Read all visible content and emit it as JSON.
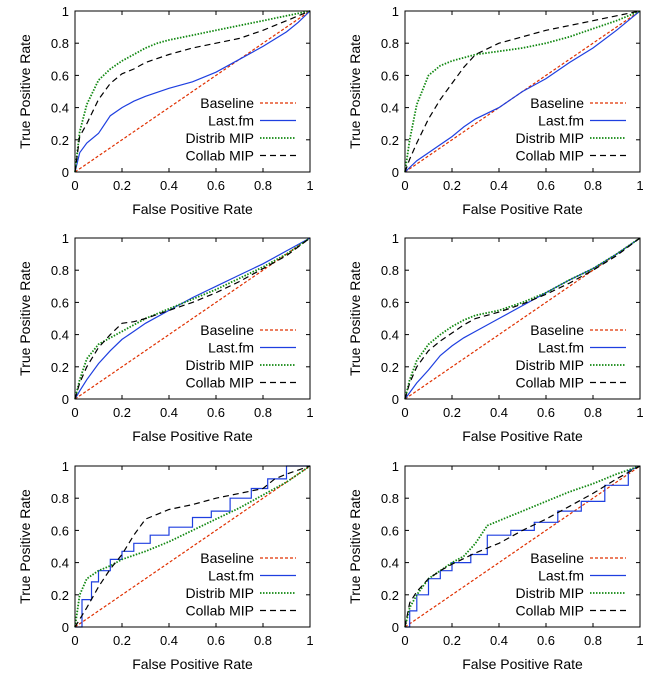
{
  "figure": {
    "colors": {
      "Baseline": "#e03000",
      "Last.fm": "#1e3fe0",
      "Distrib MIP": "#118811",
      "Collab MIP": "#000000"
    },
    "dashes": {
      "Baseline": "3,2",
      "Last.fm": "",
      "Distrib MIP": "1.5,1.5",
      "Collab MIP": "6,4"
    }
  },
  "chart_data": [
    {
      "type": "line",
      "xlabel": "False Positive Rate",
      "ylabel": "True Positive Rate",
      "xlim": [
        0,
        1
      ],
      "ylim": [
        0,
        1
      ],
      "xticks": [
        "0",
        "0.2",
        "0.4",
        "0.6",
        "0.8",
        "1"
      ],
      "yticks": [
        "0",
        "0.2",
        "0.4",
        "0.6",
        "0.8",
        "1"
      ],
      "legend": "bottom-right",
      "grid": false,
      "series": [
        {
          "name": "Baseline",
          "x": [
            0,
            1
          ],
          "y": [
            0,
            1
          ]
        },
        {
          "name": "Last.fm",
          "x": [
            0,
            0.02,
            0.05,
            0.1,
            0.15,
            0.2,
            0.25,
            0.3,
            0.4,
            0.5,
            0.6,
            0.7,
            0.8,
            0.9,
            0.95,
            1
          ],
          "y": [
            0,
            0.12,
            0.18,
            0.24,
            0.35,
            0.4,
            0.44,
            0.47,
            0.52,
            0.56,
            0.62,
            0.7,
            0.78,
            0.87,
            0.93,
            1
          ]
        },
        {
          "name": "Distrib MIP",
          "x": [
            0,
            0.02,
            0.05,
            0.1,
            0.15,
            0.2,
            0.25,
            0.3,
            0.35,
            0.4,
            0.5,
            0.6,
            0.7,
            0.8,
            0.9,
            1
          ],
          "y": [
            0,
            0.25,
            0.42,
            0.57,
            0.64,
            0.69,
            0.73,
            0.77,
            0.8,
            0.82,
            0.85,
            0.88,
            0.91,
            0.94,
            0.97,
            1
          ]
        },
        {
          "name": "Collab MIP",
          "x": [
            0,
            0.02,
            0.05,
            0.1,
            0.15,
            0.2,
            0.25,
            0.3,
            0.4,
            0.5,
            0.6,
            0.7,
            0.8,
            0.9,
            1
          ],
          "y": [
            0,
            0.22,
            0.3,
            0.45,
            0.55,
            0.61,
            0.64,
            0.68,
            0.73,
            0.77,
            0.8,
            0.83,
            0.88,
            0.94,
            1
          ]
        }
      ]
    },
    {
      "type": "line",
      "xlabel": "False Positive Rate",
      "ylabel": "True Positive Rate",
      "xlim": [
        0,
        1
      ],
      "ylim": [
        0,
        1
      ],
      "xticks": [
        "0",
        "0.2",
        "0.4",
        "0.6",
        "0.8",
        "1"
      ],
      "yticks": [
        "0",
        "0.2",
        "0.4",
        "0.6",
        "0.8",
        "1"
      ],
      "legend": "bottom-right",
      "grid": false,
      "series": [
        {
          "name": "Baseline",
          "x": [
            0,
            1
          ],
          "y": [
            0,
            1
          ]
        },
        {
          "name": "Last.fm",
          "x": [
            0,
            0.05,
            0.1,
            0.15,
            0.2,
            0.25,
            0.3,
            0.4,
            0.5,
            0.6,
            0.7,
            0.8,
            0.9,
            1
          ],
          "y": [
            0,
            0.07,
            0.12,
            0.17,
            0.22,
            0.28,
            0.33,
            0.4,
            0.5,
            0.58,
            0.68,
            0.77,
            0.88,
            1
          ]
        },
        {
          "name": "Distrib MIP",
          "x": [
            0,
            0.02,
            0.05,
            0.1,
            0.15,
            0.2,
            0.25,
            0.3,
            0.4,
            0.5,
            0.6,
            0.7,
            0.8,
            0.9,
            1
          ],
          "y": [
            0,
            0.2,
            0.42,
            0.6,
            0.66,
            0.69,
            0.71,
            0.73,
            0.75,
            0.77,
            0.8,
            0.84,
            0.89,
            0.94,
            1
          ]
        },
        {
          "name": "Collab MIP",
          "x": [
            0,
            0.02,
            0.05,
            0.1,
            0.15,
            0.2,
            0.25,
            0.3,
            0.4,
            0.5,
            0.6,
            0.7,
            0.8,
            0.9,
            1
          ],
          "y": [
            0,
            0.08,
            0.18,
            0.33,
            0.45,
            0.55,
            0.65,
            0.73,
            0.8,
            0.84,
            0.88,
            0.91,
            0.94,
            0.97,
            1
          ]
        }
      ]
    },
    {
      "type": "line",
      "xlabel": "False Positive Rate",
      "ylabel": "True Positive Rate",
      "xlim": [
        0,
        1
      ],
      "ylim": [
        0,
        1
      ],
      "xticks": [
        "0",
        "0.2",
        "0.4",
        "0.6",
        "0.8",
        "1"
      ],
      "yticks": [
        "0",
        "0.2",
        "0.4",
        "0.6",
        "0.8",
        "1"
      ],
      "legend": "bottom-right",
      "grid": false,
      "series": [
        {
          "name": "Baseline",
          "x": [
            0,
            1
          ],
          "y": [
            0,
            1
          ]
        },
        {
          "name": "Last.fm",
          "x": [
            0,
            0.02,
            0.05,
            0.1,
            0.15,
            0.2,
            0.25,
            0.3,
            0.4,
            0.5,
            0.6,
            0.7,
            0.8,
            0.9,
            1
          ],
          "y": [
            0,
            0.05,
            0.12,
            0.22,
            0.3,
            0.37,
            0.42,
            0.47,
            0.55,
            0.63,
            0.7,
            0.77,
            0.84,
            0.92,
            1
          ]
        },
        {
          "name": "Distrib MIP",
          "x": [
            0,
            0.02,
            0.05,
            0.1,
            0.15,
            0.2,
            0.25,
            0.3,
            0.4,
            0.5,
            0.6,
            0.7,
            0.8,
            0.9,
            1
          ],
          "y": [
            0,
            0.12,
            0.25,
            0.34,
            0.38,
            0.42,
            0.46,
            0.5,
            0.56,
            0.62,
            0.68,
            0.75,
            0.82,
            0.9,
            1
          ]
        },
        {
          "name": "Collab MIP",
          "x": [
            0,
            0.02,
            0.05,
            0.1,
            0.15,
            0.2,
            0.25,
            0.3,
            0.4,
            0.5,
            0.6,
            0.7,
            0.8,
            0.9,
            1
          ],
          "y": [
            0,
            0.1,
            0.2,
            0.32,
            0.4,
            0.47,
            0.48,
            0.5,
            0.55,
            0.6,
            0.66,
            0.73,
            0.81,
            0.89,
            1
          ]
        }
      ]
    },
    {
      "type": "line",
      "xlabel": "False Positive Rate",
      "ylabel": "True Positive Rate",
      "xlim": [
        0,
        1
      ],
      "ylim": [
        0,
        1
      ],
      "xticks": [
        "0",
        "0.2",
        "0.4",
        "0.6",
        "0.8",
        "1"
      ],
      "yticks": [
        "0",
        "0.2",
        "0.4",
        "0.6",
        "0.8",
        "1"
      ],
      "legend": "bottom-right",
      "grid": false,
      "series": [
        {
          "name": "Baseline",
          "x": [
            0,
            1
          ],
          "y": [
            0,
            1
          ]
        },
        {
          "name": "Last.fm",
          "x": [
            0,
            0.05,
            0.1,
            0.15,
            0.2,
            0.25,
            0.3,
            0.4,
            0.5,
            0.6,
            0.7,
            0.8,
            0.9,
            1
          ],
          "y": [
            0,
            0.1,
            0.18,
            0.27,
            0.33,
            0.38,
            0.42,
            0.5,
            0.58,
            0.66,
            0.74,
            0.81,
            0.9,
            1
          ]
        },
        {
          "name": "Distrib MIP",
          "x": [
            0,
            0.02,
            0.05,
            0.1,
            0.15,
            0.2,
            0.25,
            0.3,
            0.4,
            0.5,
            0.6,
            0.7,
            0.8,
            0.9,
            1
          ],
          "y": [
            0,
            0.12,
            0.24,
            0.34,
            0.4,
            0.45,
            0.49,
            0.52,
            0.55,
            0.6,
            0.66,
            0.74,
            0.81,
            0.9,
            1
          ]
        },
        {
          "name": "Collab MIP",
          "x": [
            0,
            0.02,
            0.05,
            0.1,
            0.15,
            0.2,
            0.25,
            0.3,
            0.4,
            0.5,
            0.6,
            0.7,
            0.8,
            0.9,
            1
          ],
          "y": [
            0,
            0.1,
            0.2,
            0.3,
            0.36,
            0.41,
            0.46,
            0.5,
            0.54,
            0.59,
            0.65,
            0.72,
            0.8,
            0.89,
            1
          ]
        }
      ]
    },
    {
      "type": "line",
      "xlabel": "False Positive Rate",
      "ylabel": "True Positive Rate",
      "xlim": [
        0,
        1
      ],
      "ylim": [
        0,
        1
      ],
      "xticks": [
        "0",
        "0.2",
        "0.4",
        "0.6",
        "0.8",
        "1"
      ],
      "yticks": [
        "0",
        "0.2",
        "0.4",
        "0.6",
        "0.8",
        "1"
      ],
      "legend": "bottom-right",
      "grid": false,
      "series": [
        {
          "name": "Baseline",
          "x": [
            0,
            1
          ],
          "y": [
            0,
            1
          ]
        },
        {
          "name": "Last.fm",
          "x": [
            0,
            0.03,
            0.03,
            0.07,
            0.07,
            0.1,
            0.1,
            0.15,
            0.15,
            0.2,
            0.2,
            0.25,
            0.25,
            0.32,
            0.32,
            0.4,
            0.4,
            0.5,
            0.5,
            0.58,
            0.58,
            0.66,
            0.66,
            0.75,
            0.75,
            0.82,
            0.82,
            0.9,
            0.9,
            1
          ],
          "y": [
            0,
            0,
            0.17,
            0.17,
            0.28,
            0.28,
            0.35,
            0.35,
            0.42,
            0.42,
            0.47,
            0.47,
            0.52,
            0.52,
            0.57,
            0.57,
            0.62,
            0.62,
            0.68,
            0.68,
            0.72,
            0.72,
            0.8,
            0.8,
            0.86,
            0.86,
            0.92,
            0.92,
            1,
            1
          ]
        },
        {
          "name": "Distrib MIP",
          "x": [
            0,
            0.02,
            0.05,
            0.1,
            0.15,
            0.2,
            0.3,
            0.4,
            0.5,
            0.6,
            0.7,
            0.8,
            0.9,
            1
          ],
          "y": [
            0,
            0.2,
            0.3,
            0.35,
            0.38,
            0.42,
            0.47,
            0.53,
            0.6,
            0.67,
            0.74,
            0.82,
            0.9,
            1
          ]
        },
        {
          "name": "Collab MIP",
          "x": [
            0,
            0.05,
            0.1,
            0.15,
            0.2,
            0.25,
            0.3,
            0.35,
            0.4,
            0.5,
            0.6,
            0.7,
            0.8,
            0.85,
            0.9,
            1
          ],
          "y": [
            0,
            0.12,
            0.25,
            0.36,
            0.45,
            0.57,
            0.67,
            0.7,
            0.73,
            0.76,
            0.8,
            0.83,
            0.86,
            0.92,
            0.95,
            1
          ]
        }
      ]
    },
    {
      "type": "line",
      "xlabel": "False Positive Rate",
      "ylabel": "True Positive Rate",
      "xlim": [
        0,
        1
      ],
      "ylim": [
        0,
        1
      ],
      "xticks": [
        "0",
        "0.2",
        "0.4",
        "0.6",
        "0.8",
        "1"
      ],
      "yticks": [
        "0",
        "0.2",
        "0.4",
        "0.6",
        "0.8",
        "1"
      ],
      "legend": "bottom-right",
      "grid": false,
      "series": [
        {
          "name": "Baseline",
          "x": [
            0,
            1
          ],
          "y": [
            0,
            1
          ]
        },
        {
          "name": "Last.fm",
          "x": [
            0,
            0.02,
            0.02,
            0.05,
            0.05,
            0.1,
            0.1,
            0.15,
            0.15,
            0.2,
            0.2,
            0.28,
            0.28,
            0.35,
            0.35,
            0.45,
            0.45,
            0.55,
            0.55,
            0.65,
            0.65,
            0.75,
            0.75,
            0.85,
            0.85,
            0.95,
            0.95,
            1
          ],
          "y": [
            0,
            0,
            0.1,
            0.1,
            0.2,
            0.2,
            0.3,
            0.3,
            0.35,
            0.35,
            0.4,
            0.4,
            0.45,
            0.45,
            0.57,
            0.57,
            0.6,
            0.6,
            0.65,
            0.65,
            0.72,
            0.72,
            0.78,
            0.78,
            0.88,
            0.88,
            0.97,
            1
          ]
        },
        {
          "name": "Distrib MIP",
          "x": [
            0,
            0.02,
            0.05,
            0.1,
            0.15,
            0.2,
            0.25,
            0.3,
            0.35,
            0.4,
            0.5,
            0.6,
            0.7,
            0.8,
            0.9,
            1
          ],
          "y": [
            0,
            0.12,
            0.2,
            0.3,
            0.35,
            0.4,
            0.44,
            0.52,
            0.63,
            0.66,
            0.72,
            0.78,
            0.84,
            0.89,
            0.95,
            1
          ]
        },
        {
          "name": "Collab MIP",
          "x": [
            0,
            0.02,
            0.05,
            0.1,
            0.15,
            0.2,
            0.3,
            0.4,
            0.5,
            0.6,
            0.7,
            0.8,
            0.9,
            1
          ],
          "y": [
            0,
            0.15,
            0.22,
            0.3,
            0.35,
            0.39,
            0.46,
            0.52,
            0.6,
            0.67,
            0.75,
            0.83,
            0.92,
            1
          ]
        }
      ]
    }
  ]
}
